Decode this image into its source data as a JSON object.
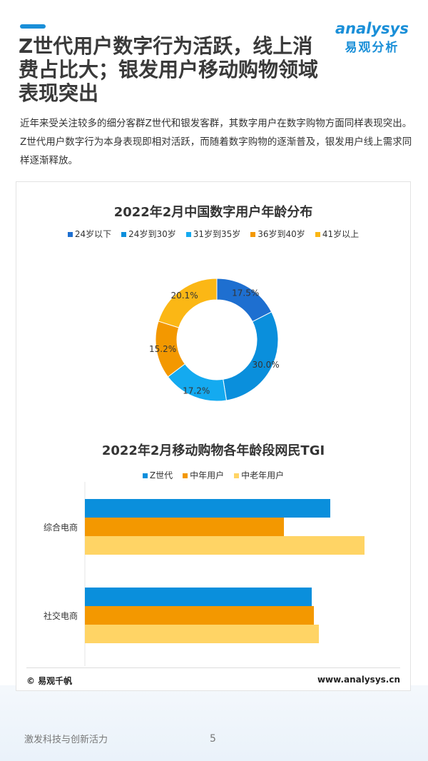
{
  "header": {
    "title": "Z世代用户数字行为活跃，线上消费占比大；银发用户移动购物领域表现突出",
    "logo_en": "analysys",
    "logo_cn": "易观分析"
  },
  "description": "近年来受关注较多的细分客群Z世代和银发客群，其数字用户在数字购物方面同样表现突出。Z世代用户数字行为本身表现即相对活跃，而随着数字购物的逐渐普及，银发用户线上需求同样逐渐释放。",
  "chart_data": [
    {
      "type": "pie",
      "donut": true,
      "title": "2022年2月中国数字用户年龄分布",
      "legend_position": "top",
      "categories": [
        "24岁以下",
        "24岁到30岁",
        "31岁到35岁",
        "36岁到40岁",
        "41岁以上"
      ],
      "values": [
        17.5,
        30.0,
        17.2,
        15.2,
        20.1
      ],
      "labels": [
        "17.5%",
        "30.0%",
        "17.2%",
        "15.2%",
        "20.1%"
      ],
      "colors": [
        "#1e6fd0",
        "#0a8fdc",
        "#14aaf0",
        "#f39800",
        "#fbb715"
      ]
    },
    {
      "type": "bar",
      "orientation": "horizontal",
      "title": "2022年2月移动购物各年龄段网民TGI",
      "legend_position": "top",
      "grid": false,
      "categories": [
        "综合电商",
        "社交电商"
      ],
      "series": [
        {
          "name": "Z世代",
          "values": [
            344,
            318
          ],
          "color": "#0a8fdc"
        },
        {
          "name": "中年用户",
          "values": [
            279,
            321
          ],
          "color": "#f39800"
        },
        {
          "name": "中老年用户",
          "values": [
            392,
            328
          ],
          "color": "#ffd465"
        }
      ]
    }
  ],
  "footer": {
    "source": "© 易观千帆",
    "url": "www.analysys.cn",
    "slogan": "激发科技与创新活力",
    "page": "5"
  }
}
